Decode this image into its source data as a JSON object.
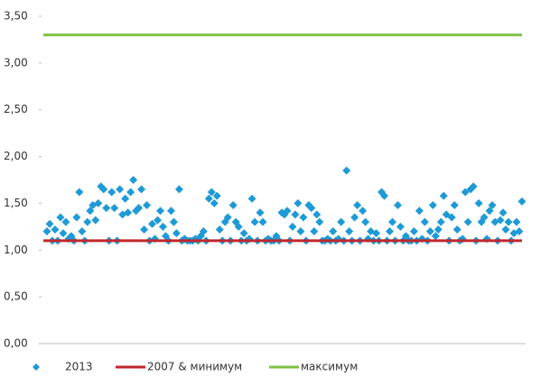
{
  "chart_data": {
    "type": "scatter",
    "ylim": [
      0,
      3.5
    ],
    "yticks": [
      {
        "value": 0,
        "label": "0,00"
      },
      {
        "value": 0.5,
        "label": "0,50"
      },
      {
        "value": 1,
        "label": "1,00"
      },
      {
        "value": 1.5,
        "label": "1,50"
      },
      {
        "value": 2,
        "label": "2,00"
      },
      {
        "value": 2.5,
        "label": "2,50"
      },
      {
        "value": 3,
        "label": "3,00"
      },
      {
        "value": 3.5,
        "label": "3,50"
      }
    ],
    "grid": false,
    "legend": "bottom",
    "series": [
      {
        "name": "2013",
        "color": "#1e9ad6",
        "marker": "diamond",
        "values": [
          1.2,
          1.28,
          1.1,
          1.22,
          1.1,
          1.35,
          1.18,
          1.3,
          1.12,
          1.15,
          1.1,
          1.35,
          1.62,
          1.2,
          1.1,
          1.3,
          1.42,
          1.48,
          1.32,
          1.5,
          1.68,
          1.65,
          1.45,
          1.1,
          1.62,
          1.45,
          1.1,
          1.65,
          1.38,
          1.55,
          1.4,
          1.62,
          1.75,
          1.42,
          1.45,
          1.65,
          1.22,
          1.48,
          1.1,
          1.28,
          1.12,
          1.32,
          1.42,
          1.25,
          1.15,
          1.1,
          1.42,
          1.3,
          1.18,
          1.65,
          1.1,
          1.12,
          1.1,
          1.1,
          1.1,
          1.12,
          1.1,
          1.15,
          1.2,
          1.1,
          1.55,
          1.62,
          1.5,
          1.58,
          1.22,
          1.1,
          1.3,
          1.35,
          1.1,
          1.48,
          1.3,
          1.25,
          1.1,
          1.18,
          1.1,
          1.12,
          1.55,
          1.3,
          1.1,
          1.4,
          1.3,
          1.1,
          1.12,
          1.1,
          1.1,
          1.15,
          1.1,
          1.4,
          1.38,
          1.42,
          1.1,
          1.25,
          1.38,
          1.5,
          1.2,
          1.35,
          1.1,
          1.48,
          1.45,
          1.2,
          1.38,
          1.3,
          1.1,
          1.1,
          1.12,
          1.1,
          1.2,
          1.1,
          1.12,
          1.3,
          1.1,
          1.85,
          1.2,
          1.1,
          1.35,
          1.48,
          1.1,
          1.42,
          1.3,
          1.12,
          1.2,
          1.1,
          1.18,
          1.1,
          1.62,
          1.58,
          1.1,
          1.2,
          1.3,
          1.1,
          1.48,
          1.25,
          1.1,
          1.15,
          1.1,
          1.1,
          1.2,
          1.1,
          1.42,
          1.12,
          1.3,
          1.1,
          1.2,
          1.48,
          1.15,
          1.22,
          1.3,
          1.58,
          1.38,
          1.1,
          1.35,
          1.48,
          1.22,
          1.1,
          1.12,
          1.62,
          1.3,
          1.65,
          1.68,
          1.1,
          1.5,
          1.3,
          1.35,
          1.12,
          1.42,
          1.48,
          1.3,
          1.1,
          1.32,
          1.4,
          1.22,
          1.3,
          1.1,
          1.18,
          1.3,
          1.2,
          1.52
        ]
      },
      {
        "name": "2007 & минимум",
        "color": "#c0272d",
        "type": "line",
        "values": [
          1.1
        ]
      },
      {
        "name": "максимум",
        "color": "#7dc242",
        "type": "line",
        "values": [
          3.3
        ]
      }
    ]
  }
}
